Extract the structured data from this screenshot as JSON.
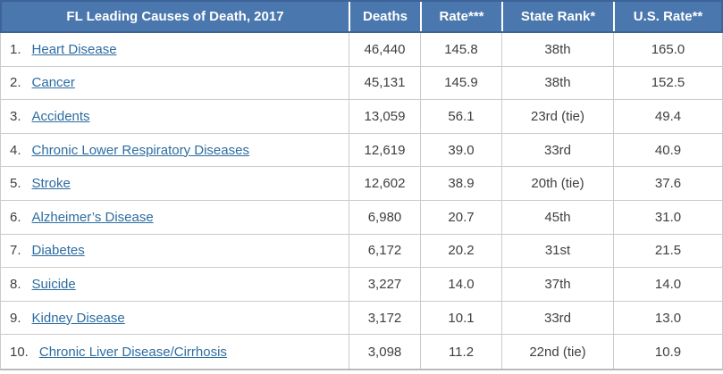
{
  "colors": {
    "header_bg": "#4a77ad",
    "header_border": "#3d6398",
    "header_text": "#ffffff",
    "grid_line": "#cbcbcb",
    "body_text": "#3f3f3f",
    "link_blue": "#2d6ca1"
  },
  "chart_data": {
    "type": "table",
    "title": "FL Leading Causes of Death, 2017",
    "column_headers": [
      "Deaths",
      "Rate***",
      "State Rank*",
      "U.S. Rate**"
    ],
    "rows": [
      {
        "rank": "1.",
        "cause": "Heart Disease",
        "deaths": "46,440",
        "rate": "145.8",
        "state_rank": "38th",
        "us_rate": "165.0"
      },
      {
        "rank": "2.",
        "cause": "Cancer",
        "deaths": "45,131",
        "rate": "145.9",
        "state_rank": "38th",
        "us_rate": "152.5"
      },
      {
        "rank": "3.",
        "cause": "Accidents",
        "deaths": "13,059",
        "rate": "56.1",
        "state_rank": "23rd (tie)",
        "us_rate": "49.4"
      },
      {
        "rank": "4.",
        "cause": "Chronic Lower Respiratory Diseases",
        "deaths": "12,619",
        "rate": "39.0",
        "state_rank": "33rd",
        "us_rate": "40.9"
      },
      {
        "rank": "5.",
        "cause": "Stroke",
        "deaths": "12,602",
        "rate": "38.9",
        "state_rank": "20th (tie)",
        "us_rate": "37.6"
      },
      {
        "rank": "6.",
        "cause": "Alzheimer’s Disease",
        "deaths": "6,980",
        "rate": "20.7",
        "state_rank": "45th",
        "us_rate": "31.0"
      },
      {
        "rank": "7.",
        "cause": "Diabetes",
        "deaths": "6,172",
        "rate": "20.2",
        "state_rank": "31st",
        "us_rate": "21.5"
      },
      {
        "rank": "8.",
        "cause": "Suicide",
        "deaths": "3,227",
        "rate": "14.0",
        "state_rank": "37th",
        "us_rate": "14.0"
      },
      {
        "rank": "9.",
        "cause": "Kidney Disease",
        "deaths": "3,172",
        "rate": "10.1",
        "state_rank": "33rd",
        "us_rate": "13.0"
      },
      {
        "rank": "10.",
        "cause": "Chronic Liver Disease/Cirrhosis",
        "deaths": "3,098",
        "rate": "11.2",
        "state_rank": "22nd (tie)",
        "us_rate": "10.9"
      }
    ]
  }
}
